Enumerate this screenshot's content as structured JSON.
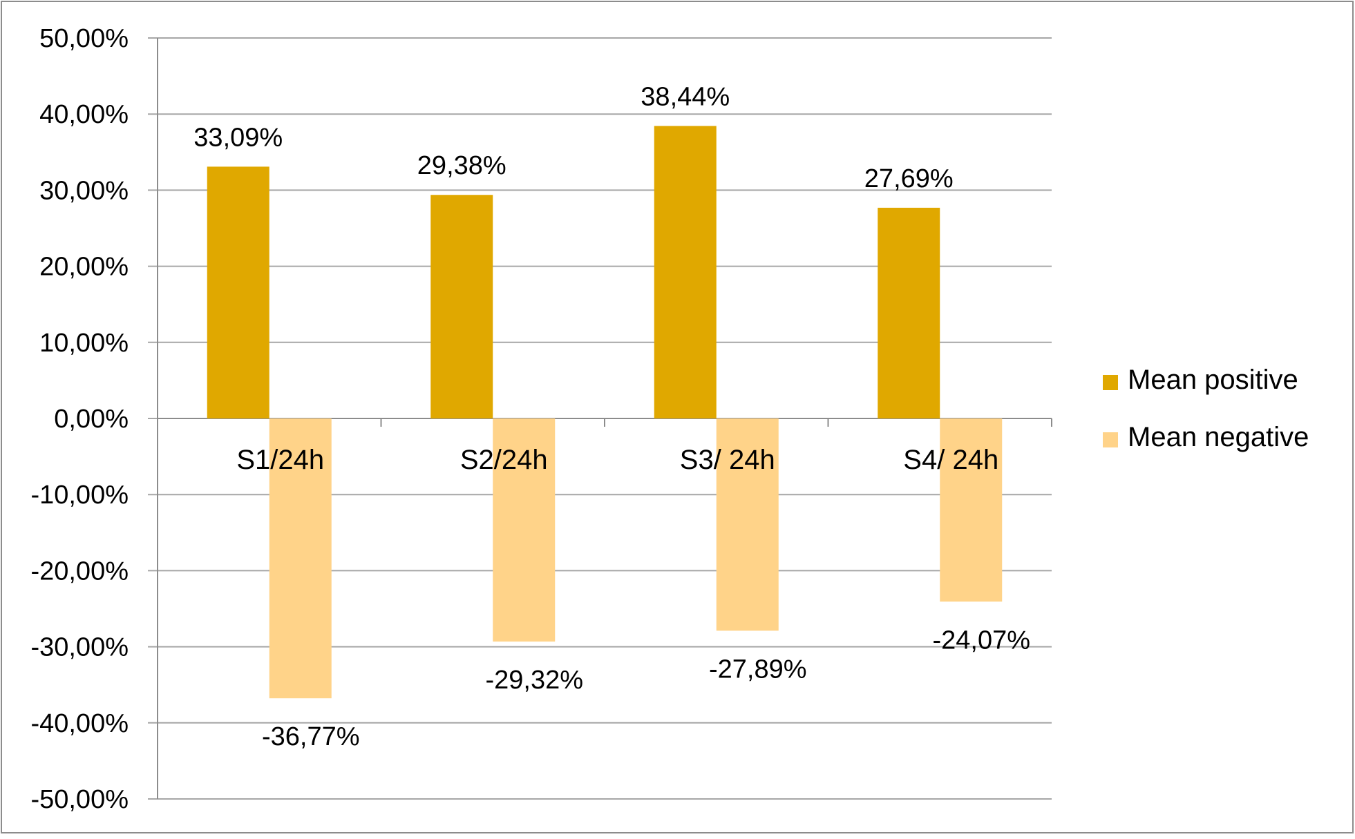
{
  "chart_data": {
    "type": "bar",
    "title": "",
    "xlabel": "",
    "ylabel": "",
    "categories": [
      "S1/24h",
      "S2/24h",
      "S3/ 24h",
      "S4/ 24h"
    ],
    "series": [
      {
        "name": "Mean positive",
        "values": [
          33.09,
          29.38,
          38.44,
          27.69
        ],
        "labels": [
          "33,09%",
          "29,38%",
          "38,44%",
          "27,69%"
        ],
        "color": "#e0a800"
      },
      {
        "name": "Mean negative",
        "values": [
          -36.77,
          -29.32,
          -27.89,
          -24.07
        ],
        "labels": [
          "-36,77%",
          "-29,32%",
          "-27,89%",
          "-24,07%"
        ],
        "color": "#ffd389"
      }
    ],
    "ylim": [
      -50,
      50
    ],
    "y_ticks": [
      {
        "value": 50,
        "label": "50,00%"
      },
      {
        "value": 40,
        "label": "40,00%"
      },
      {
        "value": 30,
        "label": "30,00%"
      },
      {
        "value": 20,
        "label": "20,00%"
      },
      {
        "value": 10,
        "label": "10,00%"
      },
      {
        "value": 0,
        "label": "0,00%"
      },
      {
        "value": -10,
        "label": "-10,00%"
      },
      {
        "value": -20,
        "label": "-20,00%"
      },
      {
        "value": -30,
        "label": "-30,00%"
      },
      {
        "value": -40,
        "label": "-40,00%"
      },
      {
        "value": -50,
        "label": "-50,00%"
      }
    ],
    "grid": true,
    "legend_position": "right",
    "gridline_color": "#a6a6a6",
    "frame_color": "#8c8c8c"
  }
}
